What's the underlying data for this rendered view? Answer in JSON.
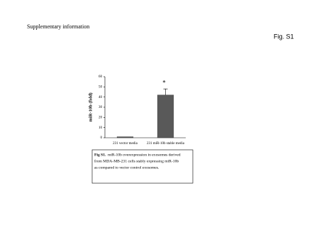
{
  "header": {
    "title": "Supplementary information",
    "figure_id": "Fig. S1"
  },
  "chart_data": {
    "type": "bar",
    "ylabel": "miR-10b (fold)",
    "categories": [
      "231 vector media",
      "231 miR-10b stable media"
    ],
    "values": [
      1,
      42
    ],
    "errors": [
      0,
      6
    ],
    "color": "#595959",
    "ylim": [
      0,
      60
    ],
    "yticks": [
      0,
      10,
      20,
      30,
      40,
      50,
      60
    ],
    "annotation": "*"
  },
  "caption": {
    "label": "Fig S1.",
    "lines": [
      "miR-10b overexpression in exosomes derived",
      "from MDA-MB-231 cells stably expressing miR-10b",
      "as compared to vector control exosomes."
    ]
  }
}
